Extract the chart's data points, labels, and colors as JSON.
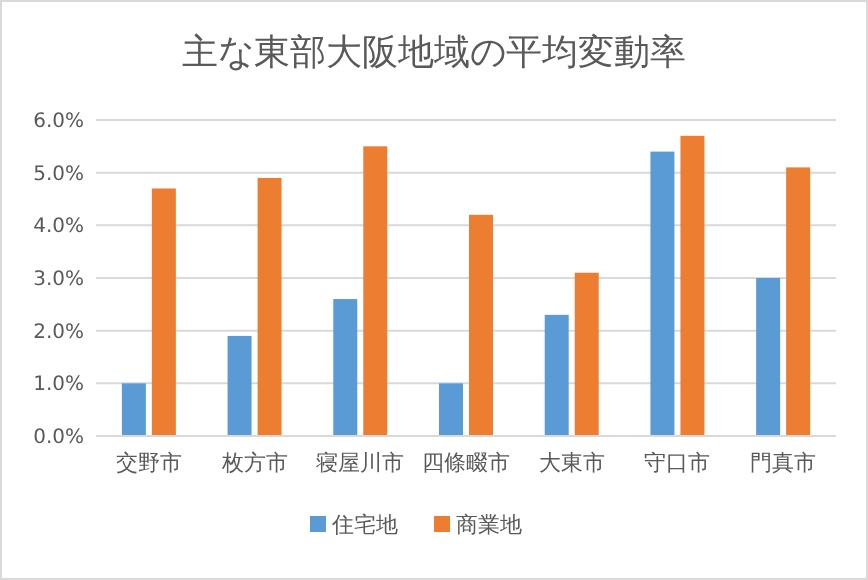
{
  "chart_data": {
    "type": "bar",
    "title": "主な東部大阪地域の平均変動率",
    "categories": [
      "交野市",
      "枚方市",
      "寝屋川市",
      "四條畷市",
      "大東市",
      "守口市",
      "門真市"
    ],
    "series": [
      {
        "name": "住宅地",
        "color": "#5b9bd5",
        "values": [
          1.0,
          1.9,
          2.6,
          1.0,
          2.3,
          5.4,
          3.0
        ]
      },
      {
        "name": "商業地",
        "color": "#ed7d31",
        "values": [
          4.7,
          4.9,
          5.5,
          4.2,
          3.1,
          5.7,
          5.1
        ]
      }
    ],
    "ylim": [
      0,
      6
    ],
    "yticks": [
      {
        "value": 0,
        "label": "0.0%"
      },
      {
        "value": 1,
        "label": "1.0%"
      },
      {
        "value": 2,
        "label": "2.0%"
      },
      {
        "value": 3,
        "label": "3.0%"
      },
      {
        "value": 4,
        "label": "4.0%"
      },
      {
        "value": 5,
        "label": "5.0%"
      },
      {
        "value": 6,
        "label": "6.0%"
      }
    ],
    "grid": "y",
    "legend": "bottom"
  }
}
